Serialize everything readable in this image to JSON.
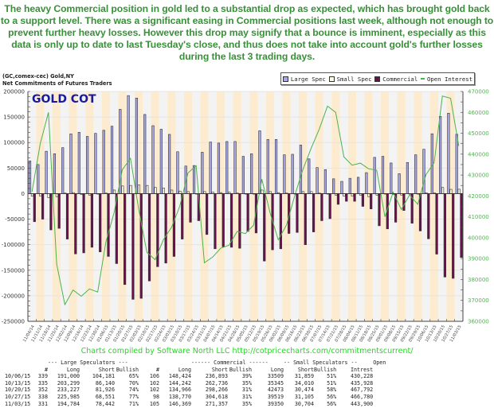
{
  "commentary": "The heavy Commercial position in gold led to a substantial drop as expected, which has brought gold back to a support level. There was a significant easing in Commercial positions last week, although not enough to prevent further heavy losses. However this drop may signify that a bounce is imminent, especially as this data is only up to date to last Tuesday's close, and thus does not take into account gold's further losses during the last 3 trading days.",
  "chart_header": {
    "line1": "(GC,comex-cec) Gold,NY",
    "line2": "Net Commitments of Futures Traders"
  },
  "credit": "Charts compiled by Software North LLC  http://cotpricecharts.com/commitmentscurrent/",
  "colors": {
    "large_spec": "#a8a8e8",
    "small_spec": "#fffbe0",
    "commercial": "#6b0f4f",
    "open_interest": "#4cb24c",
    "band_orange": "#fdebd0",
    "band_gray": "#f3f3f3",
    "title": "#1a1aa0",
    "commentary": "#3a8f3a",
    "credit": "#22d822"
  },
  "chart_data": {
    "type": "bar",
    "title": "GOLD COT",
    "xlabel": "",
    "ylabel": "Net Commitments",
    "y2label": "Open Interest",
    "ylim": [
      -250000,
      200000
    ],
    "y2lim": [
      360000,
      470000
    ],
    "yticks": [
      200000,
      150000,
      100000,
      50000,
      0,
      -50000,
      -100000,
      -150000,
      -200000,
      -250000
    ],
    "y2ticks": [
      470000,
      460000,
      450000,
      440000,
      430000,
      420000,
      410000,
      400000,
      390000,
      380000,
      370000,
      360000
    ],
    "legend": [
      "Large Spec",
      "Small Spec",
      "Commercial",
      "Open Interest"
    ],
    "legend_position": "top-right",
    "grid": true,
    "categories": [
      "11/04/14",
      "11/11/14",
      "11/18/14",
      "11/25/14",
      "12/02/14",
      "12/09/14",
      "12/16/14",
      "12/23/14",
      "12/30/14",
      "01/06/15",
      "01/13/15",
      "01/20/15",
      "01/27/15",
      "02/03/15",
      "02/10/15",
      "02/17/15",
      "02/24/15",
      "03/03/15",
      "03/10/15",
      "03/17/15",
      "03/24/15",
      "03/31/15",
      "04/07/15",
      "04/14/15",
      "04/21/15",
      "04/28/15",
      "05/05/15",
      "05/12/15",
      "05/19/15",
      "05/26/15",
      "06/02/15",
      "06/09/15",
      "06/16/15",
      "06/23/15",
      "06/30/15",
      "07/07/15",
      "07/14/15",
      "07/21/15",
      "07/28/15",
      "08/04/15",
      "08/11/15",
      "08/18/15",
      "08/25/15",
      "09/01/15",
      "09/08/15",
      "09/15/15",
      "09/22/15",
      "09/29/15",
      "10/06/15",
      "10/13/15",
      "10/20/15",
      "10/27/15",
      "11/03/15"
    ],
    "series": [
      {
        "name": "Large Spec",
        "axis": "left",
        "values": [
          64000,
          57000,
          83000,
          78000,
          90000,
          117000,
          120000,
          112000,
          118000,
          124000,
          132000,
          165000,
          192000,
          187000,
          155000,
          133000,
          126000,
          116000,
          82000,
          54000,
          55000,
          81000,
          101000,
          99000,
          102000,
          102000,
          73000,
          78000,
          123000,
          106000,
          106000,
          76000,
          77000,
          95000,
          68000,
          51000,
          47000,
          29000,
          24000,
          30000,
          32000,
          41000,
          71000,
          73000,
          60000,
          39000,
          61000,
          76000,
          86819,
          117159,
          151301,
          157434,
          116342
        ]
      },
      {
        "name": "Small Spec",
        "axis": "left",
        "values": [
          -5000,
          -5000,
          -8000,
          -6000,
          1000,
          2000,
          -2000,
          -3000,
          -1000,
          1000,
          7000,
          15000,
          16000,
          17000,
          16000,
          12000,
          11000,
          7000,
          5000,
          4000,
          0,
          4000,
          3000,
          2000,
          3000,
          1000,
          0,
          -1000,
          7000,
          4000,
          2000,
          1000,
          0,
          4000,
          4000,
          1000,
          0,
          -3000,
          -5000,
          -5000,
          -3000,
          -6000,
          -3000,
          0,
          -2000,
          -3000,
          -1000,
          0,
          1650,
          1335,
          11999,
          8414,
          8646
        ]
      },
      {
        "name": "Commercial",
        "axis": "left",
        "values": [
          -55000,
          -50000,
          -71000,
          -68000,
          -89000,
          -118000,
          -116000,
          -105000,
          -114000,
          -123000,
          -137000,
          -178000,
          -207000,
          -205000,
          -171000,
          -143000,
          -136000,
          -123000,
          -89000,
          -56000,
          -53000,
          -80000,
          -108000,
          -104000,
          -105000,
          -107000,
          -74000,
          -77000,
          -132000,
          -110000,
          -108000,
          -78000,
          -76000,
          -100000,
          -75000,
          -53000,
          -49000,
          -21000,
          -15000,
          -15000,
          -25000,
          -30000,
          -63000,
          -69000,
          -56000,
          -33000,
          -58000,
          -73000,
          -88469,
          -118494,
          -163300,
          -165848,
          -124988
        ]
      },
      {
        "name": "Open Interest",
        "axis": "right",
        "type": "line",
        "values": [
          422000,
          445000,
          460000,
          387500,
          368000,
          375000,
          372000,
          375500,
          374000,
          398000,
          412000,
          432500,
          438000,
          413600,
          393000,
          389500,
          399000,
          405000,
          415000,
          431000,
          434500,
          388000,
          390700,
          395000,
          396400,
          403000,
          402000,
          406000,
          428000,
          412000,
          399000,
          406000,
          420000,
          432600,
          442700,
          452000,
          463000,
          460000,
          438700,
          434700,
          435700,
          433000,
          432300,
          410000,
          421800,
          413500,
          420500,
          416000,
          430228,
          435928,
          467792,
          466780,
          443900
        ]
      }
    ]
  },
  "table": {
    "group_headers": {
      "large": "--- Large Speculators ---",
      "commercial": "------ Commercial ------",
      "small": "-- Small Speculators --",
      "open": "Open"
    },
    "columns": [
      "",
      "#",
      "Long",
      "Short",
      "Bullish",
      "#",
      "Long",
      "Short",
      "Bullish",
      "Long",
      "Short",
      "Bullish",
      "Intrest"
    ],
    "rows": [
      [
        "10/06/15",
        "339",
        "191,000",
        "104,181",
        "65%",
        "106",
        "148,424",
        "236,893",
        "39%",
        "33509",
        "31,859",
        "51%",
        "430,228"
      ],
      [
        "10/13/15",
        "335",
        "203,299",
        "86,140",
        "70%",
        "102",
        "144,242",
        "262,736",
        "35%",
        "35345",
        "34,010",
        "51%",
        "435,928"
      ],
      [
        "10/20/15",
        "352",
        "233,227",
        "81,926",
        "74%",
        "102",
        "134,966",
        "298,266",
        "31%",
        "42473",
        "30,474",
        "58%",
        "467,792"
      ],
      [
        "10/27/15",
        "338",
        "225,985",
        "68,551",
        "77%",
        "98",
        "138,770",
        "304,618",
        "31%",
        "39519",
        "31,105",
        "56%",
        "466,780"
      ],
      [
        "11/03/15",
        "331",
        "194,784",
        "78,442",
        "71%",
        "105",
        "146,369",
        "271,357",
        "35%",
        "39350",
        "30,704",
        "56%",
        "443,900"
      ]
    ]
  }
}
